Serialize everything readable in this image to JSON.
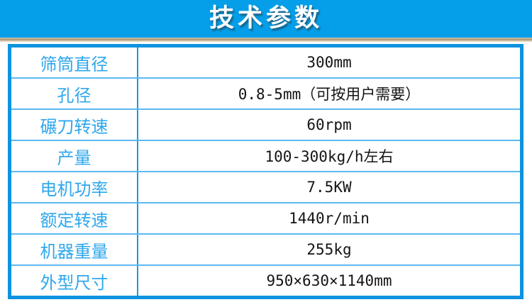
{
  "banner": {
    "title": "技术参数"
  },
  "colors": {
    "banner_bg": "#049ee9",
    "banner_text": "#ffffff",
    "banner_shadow_tan": "#ae966c",
    "table_outer_border": "#0e93e0",
    "table_row_divider": "#5cb8f2",
    "table_col_divider": "#1599e4",
    "label_text": "#2fa7ec",
    "value_text": "#141414"
  },
  "table": {
    "rows": [
      {
        "label": "筛筒直径",
        "value": "300mm"
      },
      {
        "label": "孔径",
        "value": "0.8-5mm（可按用户需要）"
      },
      {
        "label": "碾刀转速",
        "value": "60rpm"
      },
      {
        "label": "产量",
        "value": "100-300kg/h左右"
      },
      {
        "label": "电机功率",
        "value": "7.5KW"
      },
      {
        "label": "额定转速",
        "value": "1440r/min"
      },
      {
        "label": "机器重量",
        "value": "255kg"
      },
      {
        "label": "外型尺寸",
        "value": "950×630×1140mm"
      }
    ]
  }
}
